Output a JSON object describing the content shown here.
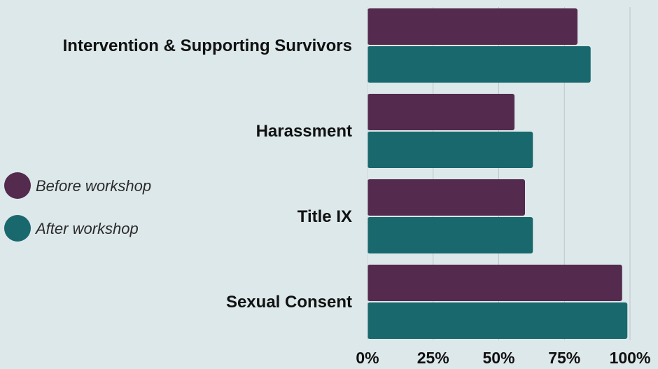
{
  "chart_data": {
    "type": "bar",
    "orientation": "horizontal",
    "categories": [
      "Intervention & Supporting Survivors",
      "Harassment",
      "Title IX",
      "Sexual Consent"
    ],
    "series": [
      {
        "name": "Before workshop",
        "color": "#542a4e",
        "values": [
          80,
          56,
          60,
          97
        ]
      },
      {
        "name": "After workshop",
        "color": "#19686d",
        "values": [
          85,
          63,
          63,
          99
        ]
      }
    ],
    "xlim": [
      0,
      100
    ],
    "x_ticks": [
      "0%",
      "25%",
      "50%",
      "75%",
      "100%"
    ],
    "grid": true,
    "legend_position": "left"
  }
}
